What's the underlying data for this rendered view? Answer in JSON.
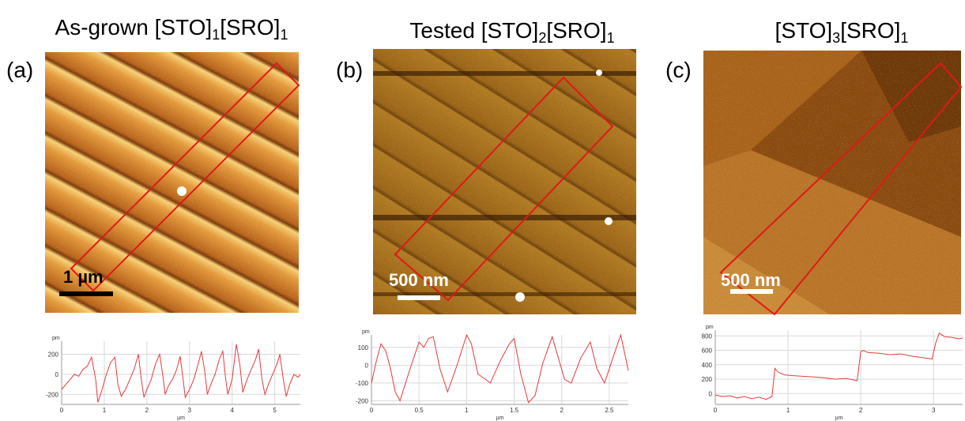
{
  "panels": [
    {
      "label": "(a)",
      "title": [
        "As-grown [STO]",
        "1",
        "[SRO]",
        "1"
      ],
      "scale_bar": "1 µm"
    },
    {
      "label": "(b)",
      "title": [
        "Tested [STO]",
        "2",
        "[SRO]",
        "1"
      ],
      "scale_bar": "500 nm"
    },
    {
      "label": "(c)",
      "title": [
        "[STO]",
        "3",
        "[SRO]",
        "1"
      ],
      "scale_bar": "500 nm"
    }
  ],
  "chart_data": [
    {
      "type": "line",
      "xlabel": "µm",
      "ylabel": "pm",
      "color": "#e8393c",
      "xlim": [
        0,
        5.6
      ],
      "ylim": [
        -300,
        330
      ],
      "xticks": [
        0,
        1,
        2,
        3,
        4,
        5
      ],
      "yticks": [
        -200,
        0,
        200
      ],
      "x": [
        0,
        0.1,
        0.2,
        0.3,
        0.4,
        0.5,
        0.6,
        0.7,
        0.8,
        0.85,
        0.95,
        1.05,
        1.15,
        1.25,
        1.32,
        1.4,
        1.5,
        1.6,
        1.7,
        1.8,
        1.87,
        1.93,
        2.0,
        2.1,
        2.2,
        2.3,
        2.37,
        2.43,
        2.5,
        2.6,
        2.7,
        2.78,
        2.85,
        2.9,
        3.0,
        3.1,
        3.2,
        3.28,
        3.35,
        3.42,
        3.5,
        3.6,
        3.7,
        3.78,
        3.85,
        3.9,
        4.0,
        4.1,
        4.18,
        4.25,
        4.35,
        4.45,
        4.55,
        4.62,
        4.7,
        4.77,
        4.85,
        4.95,
        5.05,
        5.12,
        5.2,
        5.27,
        5.35,
        5.45,
        5.55,
        5.6
      ],
      "values": [
        -150,
        -100,
        -50,
        0,
        -20,
        50,
        80,
        170,
        -50,
        -280,
        -150,
        0,
        120,
        170,
        -100,
        -220,
        -150,
        -50,
        50,
        200,
        -50,
        -230,
        -150,
        -50,
        100,
        200,
        0,
        -200,
        -120,
        -50,
        50,
        180,
        -50,
        -230,
        -150,
        -50,
        100,
        230,
        50,
        -200,
        -100,
        0,
        150,
        230,
        -50,
        -200,
        -50,
        300,
        100,
        -180,
        -50,
        50,
        150,
        250,
        -50,
        -200,
        -100,
        0,
        100,
        200,
        -50,
        -220,
        -100,
        0,
        -30,
        0
      ]
    },
    {
      "type": "line",
      "xlabel": "µm",
      "ylabel": "pm",
      "color": "#e8393c",
      "xlim": [
        0,
        2.7
      ],
      "ylim": [
        -220,
        170
      ],
      "xticks": [
        0,
        0.5,
        1,
        1.5,
        2,
        2.5
      ],
      "yticks": [
        -200,
        -100,
        0,
        100
      ],
      "x": [
        0,
        0.05,
        0.1,
        0.15,
        0.2,
        0.25,
        0.3,
        0.4,
        0.5,
        0.55,
        0.6,
        0.65,
        0.72,
        0.8,
        0.9,
        1.0,
        1.05,
        1.12,
        1.2,
        1.25,
        1.35,
        1.45,
        1.5,
        1.57,
        1.65,
        1.72,
        1.8,
        1.9,
        1.96,
        2.03,
        2.1,
        2.2,
        2.3,
        2.37,
        2.45,
        2.55,
        2.62,
        2.7
      ],
      "values": [
        -100,
        20,
        120,
        80,
        -20,
        -150,
        -200,
        -30,
        130,
        100,
        150,
        160,
        -20,
        -150,
        0,
        170,
        120,
        -50,
        -80,
        -100,
        20,
        120,
        150,
        -50,
        -210,
        -170,
        10,
        160,
        50,
        -80,
        -100,
        40,
        130,
        -20,
        -100,
        60,
        170,
        -30
      ]
    },
    {
      "type": "line",
      "xlabel": "µm",
      "ylabel": "pm",
      "color": "#e8393c",
      "xlim": [
        0,
        3.4
      ],
      "ylim": [
        -150,
        880
      ],
      "xticks": [
        0,
        1,
        2,
        3
      ],
      "yticks": [
        0,
        200,
        400,
        600,
        800
      ],
      "x": [
        0,
        0.1,
        0.2,
        0.3,
        0.4,
        0.5,
        0.6,
        0.7,
        0.78,
        0.82,
        0.86,
        0.95,
        1.05,
        1.2,
        1.35,
        1.5,
        1.65,
        1.8,
        1.95,
        2.0,
        2.03,
        2.1,
        2.25,
        2.4,
        2.55,
        2.7,
        2.85,
        2.98,
        3.03,
        3.08,
        3.15,
        3.25,
        3.35,
        3.4
      ],
      "values": [
        -20,
        -40,
        -30,
        -60,
        -40,
        -70,
        -50,
        -80,
        -40,
        350,
        300,
        260,
        250,
        240,
        230,
        220,
        200,
        210,
        180,
        580,
        600,
        570,
        560,
        540,
        550,
        520,
        500,
        480,
        700,
        840,
        790,
        780,
        760,
        770
      ]
    }
  ]
}
